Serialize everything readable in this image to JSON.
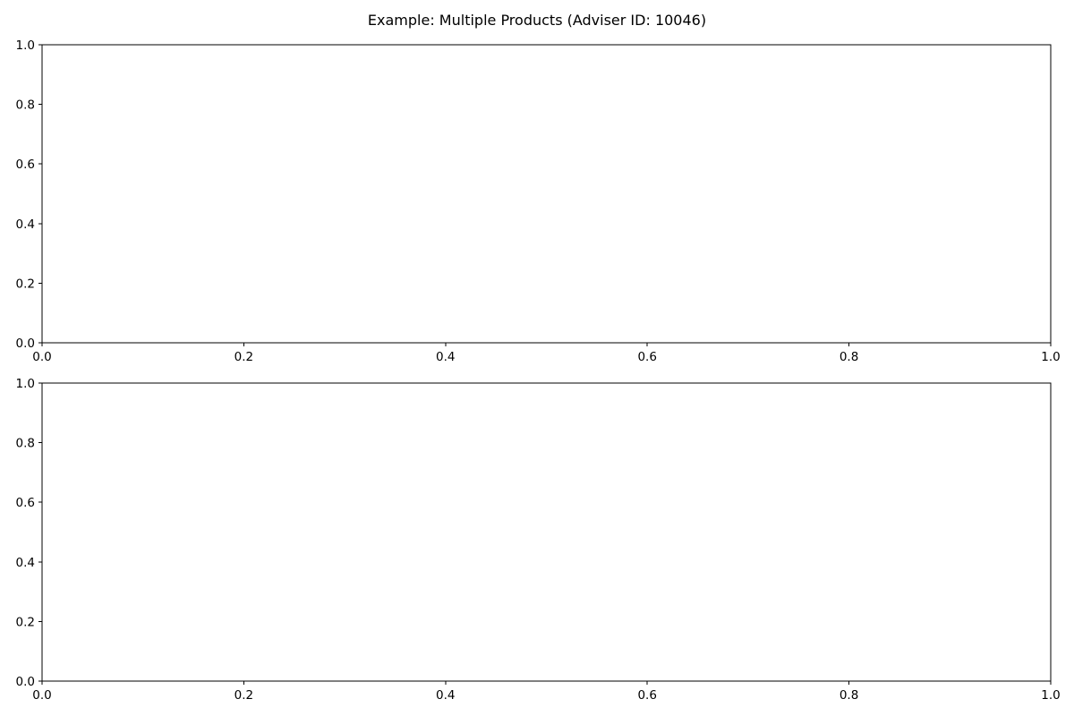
{
  "figure": {
    "suptitle": "Example: Multiple Products (Adviser ID: 10046)"
  },
  "chart_data": [
    {
      "type": "line",
      "title": "",
      "xlabel": "",
      "ylabel": "",
      "xlim": [
        0.0,
        1.0
      ],
      "ylim": [
        0.0,
        1.0
      ],
      "xticks": [
        "0.0",
        "0.2",
        "0.4",
        "0.6",
        "0.8",
        "1.0"
      ],
      "yticks": [
        "0.0",
        "0.2",
        "0.4",
        "0.6",
        "0.8",
        "1.0"
      ],
      "series": [],
      "grid": false,
      "legend": "none"
    },
    {
      "type": "line",
      "title": "",
      "xlabel": "",
      "ylabel": "",
      "xlim": [
        0.0,
        1.0
      ],
      "ylim": [
        0.0,
        1.0
      ],
      "xticks": [
        "0.0",
        "0.2",
        "0.4",
        "0.6",
        "0.8",
        "1.0"
      ],
      "yticks": [
        "0.0",
        "0.2",
        "0.4",
        "0.6",
        "0.8",
        "1.0"
      ],
      "series": [],
      "grid": false,
      "legend": "none"
    }
  ]
}
